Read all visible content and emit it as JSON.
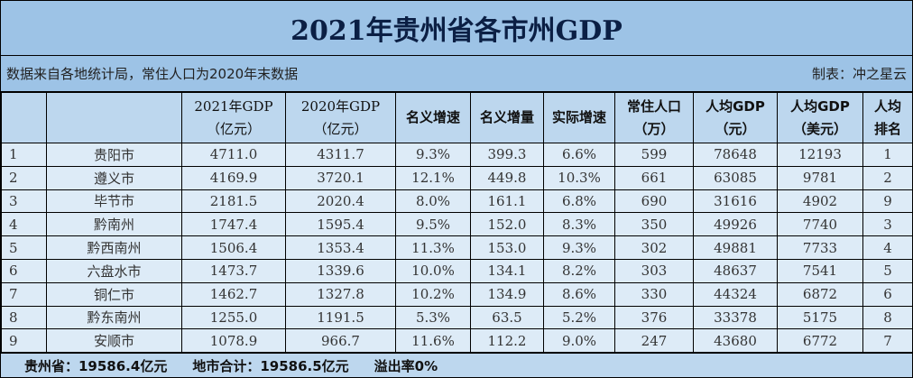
{
  "title": "2021年贵州省各市州GDP",
  "source_note": "数据来自各地统计局，常住人口为2020年末数据",
  "credit": "制表：冲之星云",
  "headers": [
    {
      "l1": "",
      "l2": ""
    },
    {
      "l1": "",
      "l2": ""
    },
    {
      "l1": "2021年GDP",
      "l2": "（亿元）"
    },
    {
      "l1": "2020年GDP",
      "l2": "（亿元）"
    },
    {
      "l1": "名义增速",
      "l2": ""
    },
    {
      "l1": "名义增量",
      "l2": ""
    },
    {
      "l1": "实际增速",
      "l2": ""
    },
    {
      "l1": "常住人口",
      "l2": "（万）"
    },
    {
      "l1": "人均GDP",
      "l2": "（元）"
    },
    {
      "l1": "人均GDP",
      "l2": "（美元）"
    },
    {
      "l1": "人均",
      "l2": "排名"
    }
  ],
  "rows": [
    [
      "1",
      "贵阳市",
      "4711.0",
      "4311.7",
      "9.3%",
      "399.3",
      "6.6%",
      "599",
      "78648",
      "12193",
      "1"
    ],
    [
      "2",
      "遵义市",
      "4169.9",
      "3720.1",
      "12.1%",
      "449.8",
      "10.3%",
      "661",
      "63085",
      "9781",
      "2"
    ],
    [
      "3",
      "毕节市",
      "2181.5",
      "2020.4",
      "8.0%",
      "161.1",
      "6.8%",
      "690",
      "31616",
      "4902",
      "9"
    ],
    [
      "4",
      "黔南州",
      "1747.4",
      "1595.4",
      "9.5%",
      "152.0",
      "8.3%",
      "350",
      "49926",
      "7740",
      "3"
    ],
    [
      "5",
      "黔西南州",
      "1506.4",
      "1353.4",
      "11.3%",
      "153.0",
      "9.3%",
      "302",
      "49881",
      "7733",
      "4"
    ],
    [
      "6",
      "六盘水市",
      "1473.7",
      "1339.6",
      "10.0%",
      "134.1",
      "8.2%",
      "303",
      "48637",
      "7541",
      "5"
    ],
    [
      "7",
      "铜仁市",
      "1462.7",
      "1327.8",
      "10.2%",
      "134.9",
      "8.6%",
      "330",
      "44324",
      "6872",
      "6"
    ],
    [
      "8",
      "黔东南州",
      "1255.0",
      "1191.5",
      "5.3%",
      "63.5",
      "5.2%",
      "376",
      "33378",
      "5175",
      "8"
    ],
    [
      "9",
      "安顺市",
      "1078.9",
      "966.7",
      "11.6%",
      "112.2",
      "9.0%",
      "247",
      "43680",
      "6772",
      "7"
    ]
  ],
  "footer": {
    "province": "贵州省：19586.4亿元",
    "sum": "地市合计：19586.5亿元",
    "overflow": "溢出率0%"
  }
}
